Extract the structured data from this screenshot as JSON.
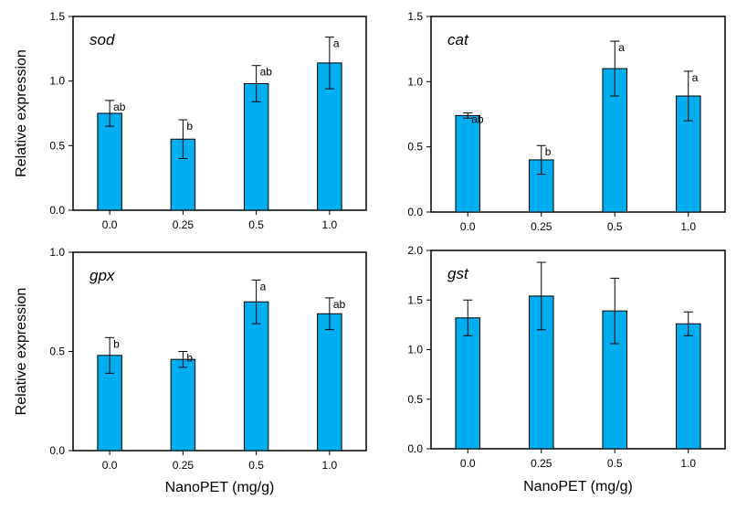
{
  "colors": {
    "bar": "#00aeef",
    "stroke": "#000000"
  },
  "chart_data": [
    {
      "type": "bar",
      "title": "sod",
      "categories": [
        "0.0",
        "0.25",
        "0.5",
        "1.0"
      ],
      "values": [
        0.75,
        0.55,
        0.98,
        1.14
      ],
      "error": [
        0.1,
        0.15,
        0.14,
        0.2
      ],
      "sig": [
        "ab",
        "b",
        "ab",
        "a"
      ],
      "ylim": [
        0,
        1.5
      ],
      "yticks": [
        "0.0",
        "0.5",
        "1.0",
        "1.5"
      ],
      "ylabel": "Relative expression",
      "xlabel": ""
    },
    {
      "type": "bar",
      "title": "cat",
      "categories": [
        "0.0",
        "0.25",
        "0.5",
        "1.0"
      ],
      "values": [
        0.74,
        0.4,
        1.1,
        0.89
      ],
      "error": [
        0.02,
        0.11,
        0.21,
        0.19
      ],
      "sig": [
        "ab",
        "b",
        "a",
        "a"
      ],
      "ylim": [
        0,
        1.5
      ],
      "yticks": [
        "0.0",
        "0.5",
        "1.0",
        "1.5"
      ],
      "ylabel": "",
      "xlabel": ""
    },
    {
      "type": "bar",
      "title": "gpx",
      "categories": [
        "0.0",
        "0.25",
        "0.5",
        "1.0"
      ],
      "values": [
        0.48,
        0.46,
        0.75,
        0.69
      ],
      "error": [
        0.09,
        0.04,
        0.11,
        0.08
      ],
      "sig": [
        "b",
        "b",
        "a",
        "ab"
      ],
      "ylim": [
        0,
        1.0
      ],
      "yticks": [
        "0.0",
        "0.5",
        "1.0"
      ],
      "ylabel": "Relative expression",
      "xlabel": "NanoPET (mg/g)"
    },
    {
      "type": "bar",
      "title": "gst",
      "categories": [
        "0.0",
        "0.25",
        "0.5",
        "1.0"
      ],
      "values": [
        1.32,
        1.54,
        1.39,
        1.26
      ],
      "error": [
        0.18,
        0.34,
        0.33,
        0.12
      ],
      "sig": [
        "",
        "",
        "",
        ""
      ],
      "ylim": [
        0,
        2.0
      ],
      "yticks": [
        "0.0",
        "0.5",
        "1.0",
        "1.5",
        "2.0"
      ],
      "ylabel": "",
      "xlabel": "NanoPET (mg/g)"
    }
  ]
}
